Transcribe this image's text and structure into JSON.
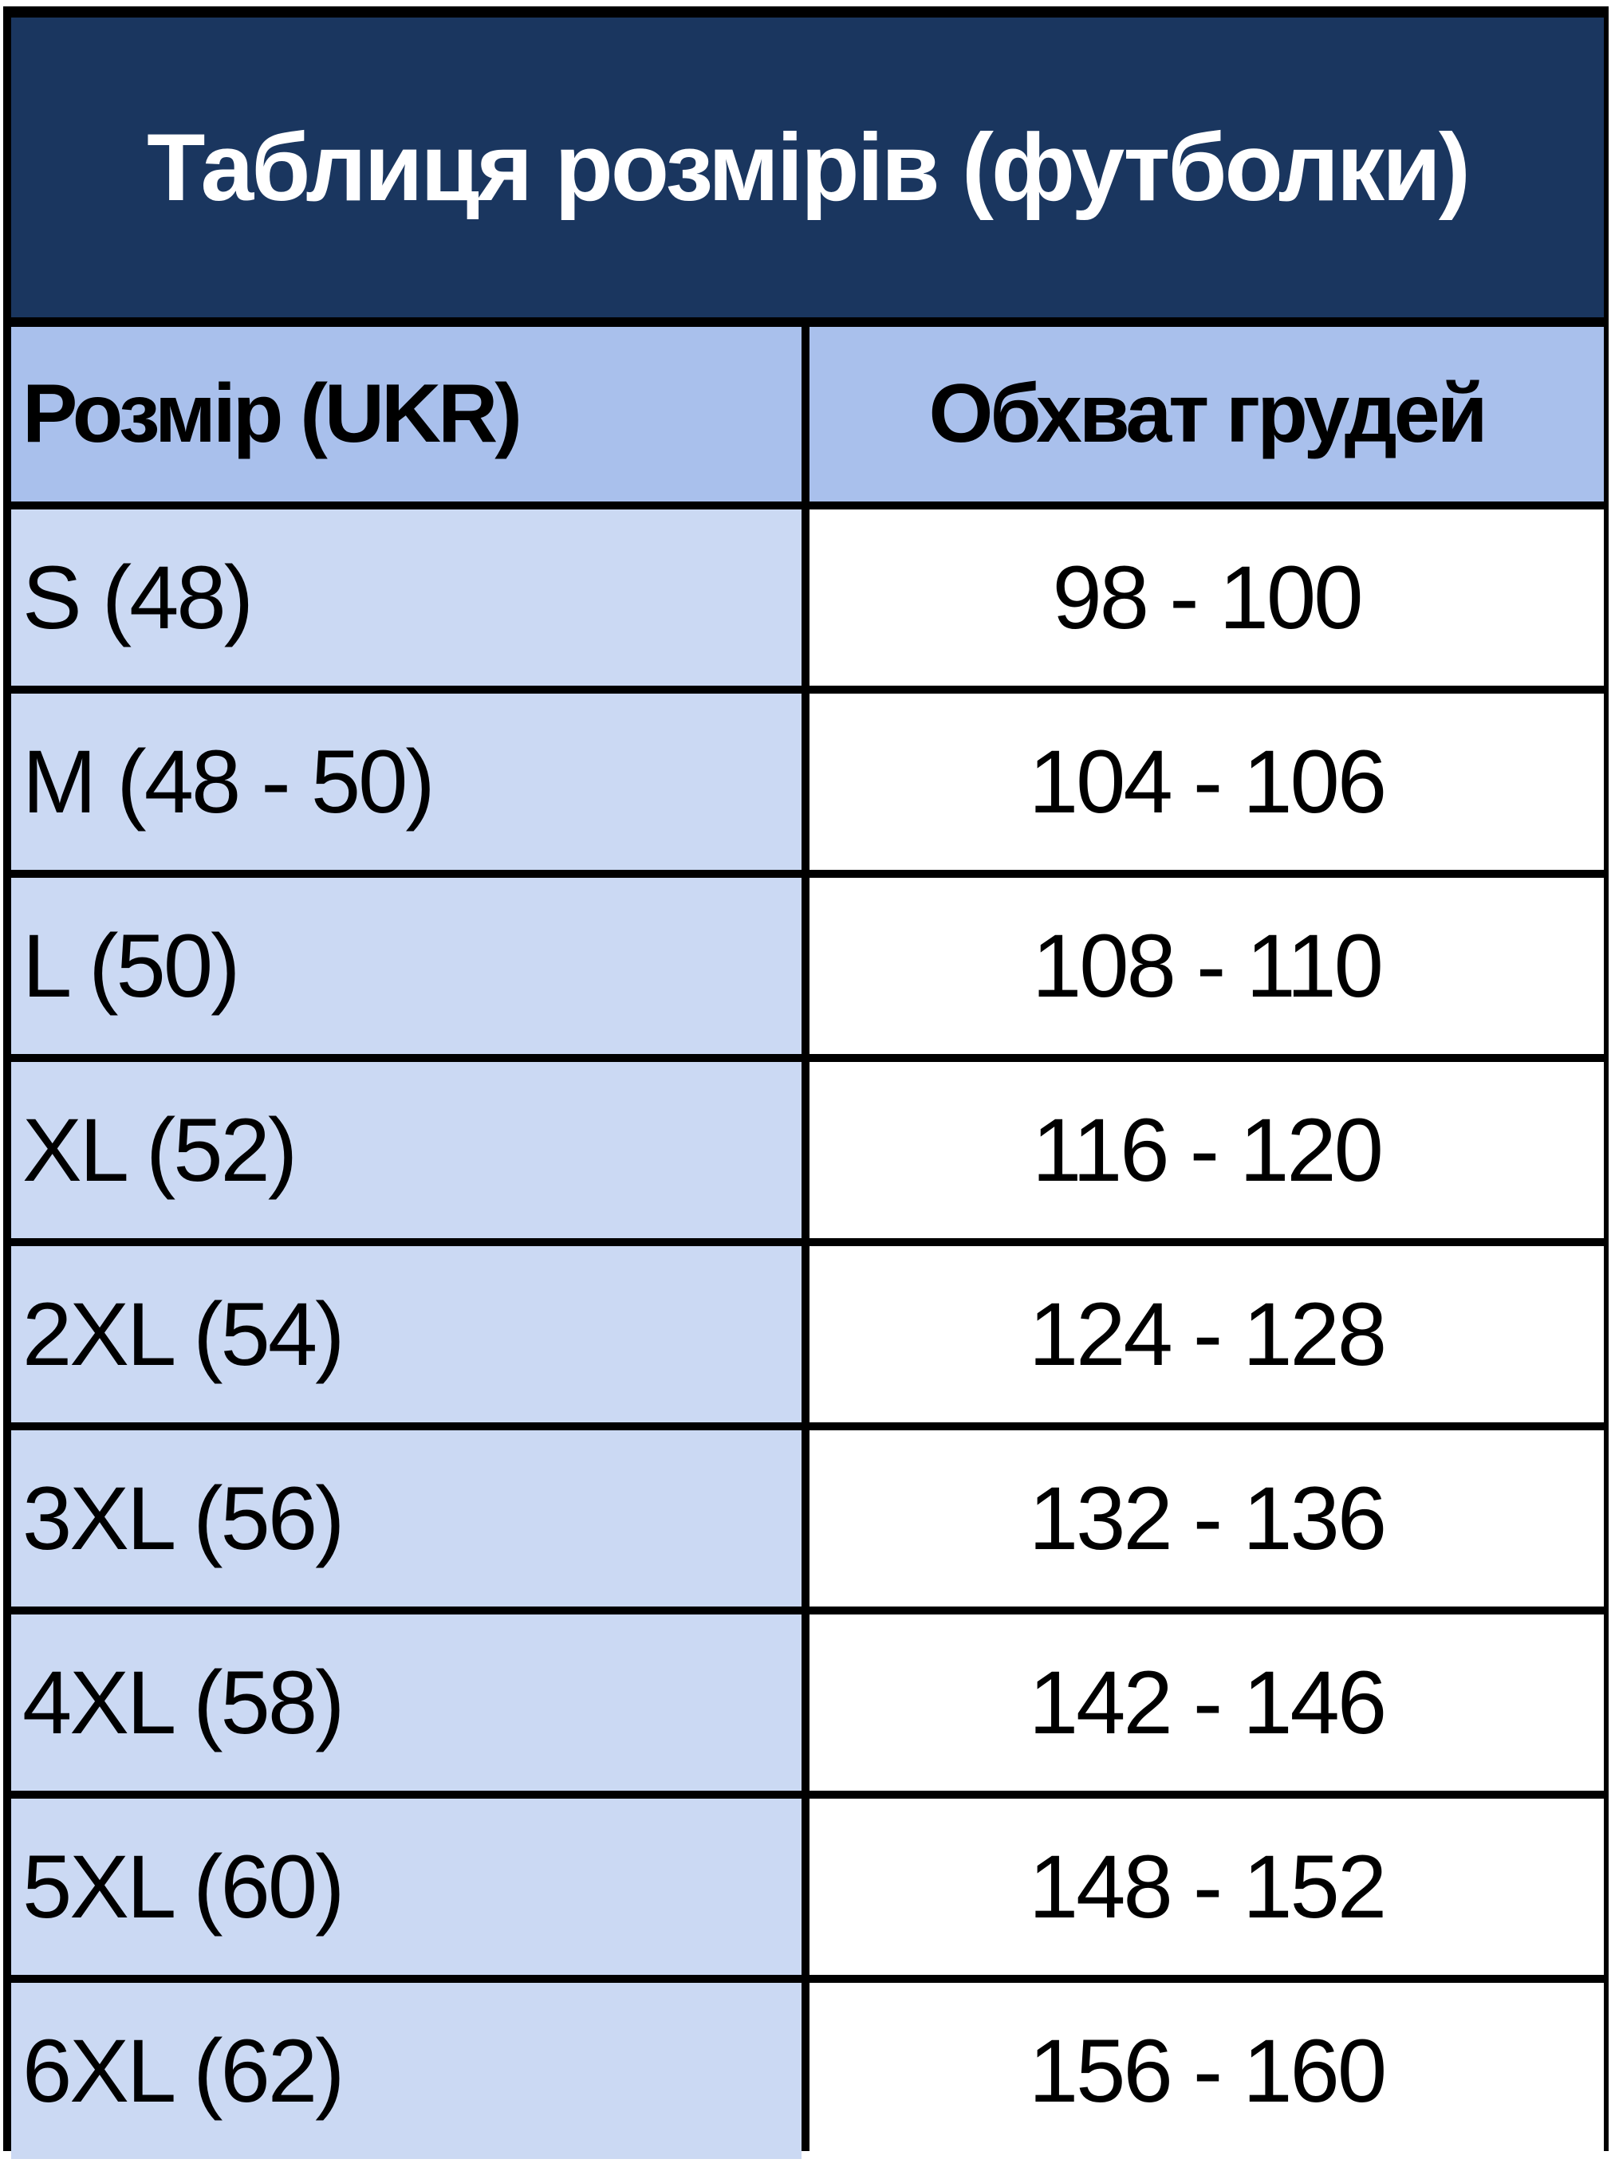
{
  "title": "Таблиця розмірів (футболки)",
  "colors": {
    "title_bg": "#1a365f",
    "header_bg": "#a9c0ec",
    "size_col_bg": "#cbd9f3",
    "value_col_bg": "#ffffff",
    "border": "#000000"
  },
  "table": {
    "headers": [
      "Розмір (UKR)",
      "Обхват грудей"
    ],
    "rows": [
      {
        "size": "S (48)",
        "chest": "98 - 100"
      },
      {
        "size": "M (48 - 50)",
        "chest": "104 - 106"
      },
      {
        "size": "L (50)",
        "chest": "108 - 110"
      },
      {
        "size": "XL (52)",
        "chest": "116 - 120"
      },
      {
        "size": "2XL (54)",
        "chest": "124 - 128"
      },
      {
        "size": "3XL (56)",
        "chest": "132 - 136"
      },
      {
        "size": "4XL (58)",
        "chest": "142 - 146"
      },
      {
        "size": "5XL (60)",
        "chest": "148 - 152"
      },
      {
        "size": "6XL (62)",
        "chest": "156 - 160"
      }
    ]
  }
}
